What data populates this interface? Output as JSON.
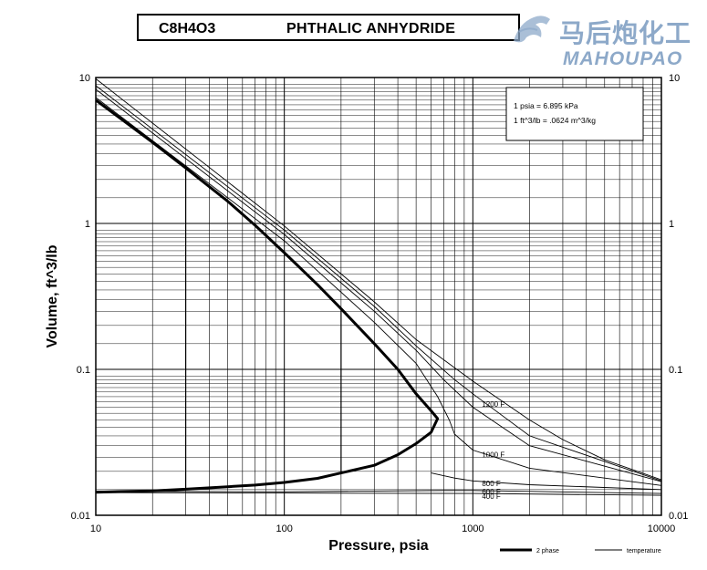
{
  "header": {
    "formula": "C8H4O3",
    "compound": "PHTHALIC ANHYDRIDE"
  },
  "watermark": {
    "cn": "马后炮化工",
    "en": "MAHOUPAO",
    "color": "#8da9c9"
  },
  "conversion_box": {
    "line1": "1 psia = 6.895 kPa",
    "line2": "1 ft^3/lb = .0624 m^3/kg"
  },
  "legend": {
    "two_phase": "2 phase",
    "temperature": "temperature"
  },
  "chart_data": {
    "type": "line",
    "title": "PHTHALIC ANHYDRIDE",
    "xlabel": "Pressure,  psia",
    "ylabel": "Volume, ft^3/lb",
    "xscale": "log",
    "yscale": "log",
    "xlim": [
      10,
      10000
    ],
    "ylim": [
      0.01,
      10
    ],
    "grid": true,
    "x_ticks": [
      "10",
      "100",
      "1000",
      "10000"
    ],
    "y_ticks": [
      "0.01",
      "0.1",
      "1",
      "10"
    ],
    "two_phase": {
      "name": "2 phase",
      "points": [
        [
          10,
          7.0
        ],
        [
          20,
          3.6
        ],
        [
          30,
          2.4
        ],
        [
          50,
          1.42
        ],
        [
          70,
          0.97
        ],
        [
          100,
          0.63
        ],
        [
          150,
          0.38
        ],
        [
          200,
          0.26
        ],
        [
          300,
          0.15
        ],
        [
          400,
          0.1
        ],
        [
          500,
          0.068
        ],
        [
          600,
          0.052
        ],
        [
          650,
          0.046
        ],
        [
          600,
          0.037
        ],
        [
          500,
          0.031
        ],
        [
          400,
          0.026
        ],
        [
          300,
          0.022
        ],
        [
          200,
          0.0195
        ],
        [
          150,
          0.0179
        ],
        [
          100,
          0.0168
        ],
        [
          70,
          0.0161
        ],
        [
          50,
          0.0157
        ],
        [
          30,
          0.0151
        ],
        [
          20,
          0.0147
        ],
        [
          10,
          0.0144
        ]
      ]
    },
    "two_phase_verticals": [
      {
        "x": 30,
        "y_top": 2.4,
        "y_bottom": 0.0151
      },
      {
        "x": 200,
        "y_top": 0.26,
        "y_bottom": 0.0195
      }
    ],
    "series": [
      {
        "name": "400 F",
        "label_at": [
          1000,
          0.0135
        ],
        "points": [
          [
            10,
            0.0143
          ],
          [
            100,
            0.0142
          ],
          [
            1000,
            0.0141
          ],
          [
            10000,
            0.0137
          ]
        ]
      },
      {
        "name": "600 F",
        "label_at": [
          1000,
          0.0145
        ],
        "points": [
          [
            10,
            0.0146
          ],
          [
            100,
            0.0145
          ],
          [
            700,
            0.0148
          ],
          [
            1000,
            0.0148
          ],
          [
            10000,
            0.0141
          ]
        ]
      },
      {
        "name": "800 F",
        "label_at": [
          1000,
          0.0165
        ],
        "points": [
          [
            600,
            0.0195
          ],
          [
            800,
            0.018
          ],
          [
            1000,
            0.0172
          ],
          [
            2000,
            0.0162
          ],
          [
            10000,
            0.015
          ]
        ]
      },
      {
        "name": "1000 F",
        "label_at": [
          1000,
          0.026
        ],
        "points": [
          [
            10,
            7.3
          ],
          [
            100,
            0.76
          ],
          [
            300,
            0.21
          ],
          [
            500,
            0.11
          ],
          [
            650,
            0.065
          ],
          [
            750,
            0.045
          ],
          [
            800,
            0.036
          ],
          [
            1000,
            0.028
          ],
          [
            2000,
            0.021
          ],
          [
            10000,
            0.016
          ]
        ]
      },
      {
        "name": "1200 F",
        "label_at": [
          1000,
          0.058
        ],
        "points": [
          [
            10,
            9.8
          ],
          [
            100,
            0.96
          ],
          [
            300,
            0.29
          ],
          [
            500,
            0.16
          ],
          [
            1000,
            0.083
          ],
          [
            2000,
            0.045
          ],
          [
            3000,
            0.033
          ],
          [
            5000,
            0.024
          ],
          [
            10000,
            0.0175
          ]
        ]
      },
      {
        "name": "",
        "points": [
          [
            10,
            8.3
          ],
          [
            100,
            0.84
          ],
          [
            300,
            0.25
          ],
          [
            500,
            0.135
          ],
          [
            700,
            0.085
          ],
          [
            1000,
            0.055
          ],
          [
            2000,
            0.03
          ],
          [
            10000,
            0.017
          ]
        ]
      },
      {
        "name": "",
        "points": [
          [
            10,
            8.8
          ],
          [
            100,
            0.9
          ],
          [
            300,
            0.27
          ],
          [
            500,
            0.145
          ],
          [
            800,
            0.085
          ],
          [
            1000,
            0.068
          ],
          [
            2000,
            0.035
          ],
          [
            10000,
            0.0172
          ]
        ]
      }
    ]
  }
}
